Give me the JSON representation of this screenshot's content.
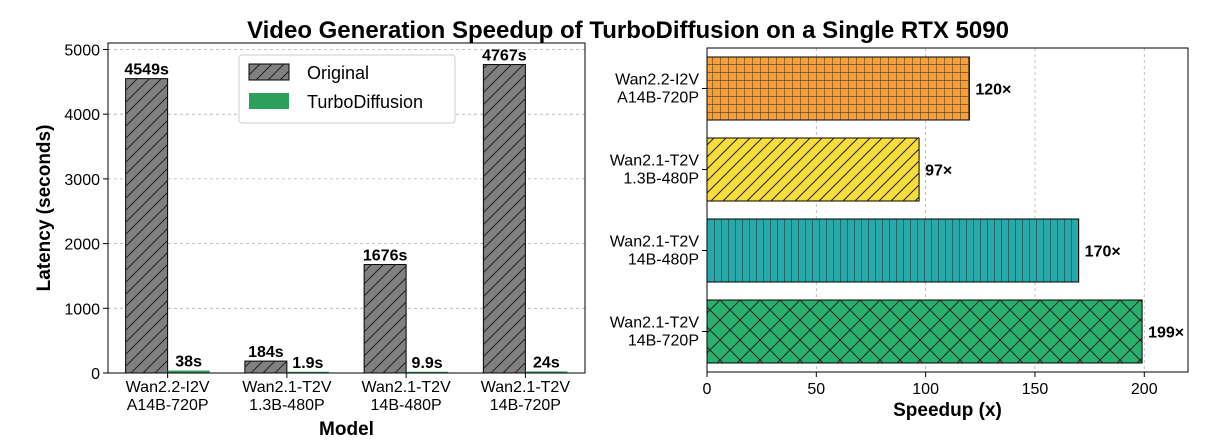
{
  "title": "Video Generation Speedup of TurboDiffusion on a Single RTX 5090",
  "chart_data": [
    {
      "type": "bar",
      "xlabel": "Model",
      "ylabel": "Latency (seconds)",
      "ylim": [
        0,
        5100
      ],
      "yticks": [
        0,
        1000,
        2000,
        3000,
        4000,
        5000
      ],
      "grid": true,
      "legend_position": "top-center",
      "categories": [
        [
          "Wan2.2-I2V",
          "A14B-720P"
        ],
        [
          "Wan2.1-T2V",
          "1.3B-480P"
        ],
        [
          "Wan2.1-T2V",
          "14B-480P"
        ],
        [
          "Wan2.1-T2V",
          "14B-720P"
        ]
      ],
      "series": [
        {
          "name": "Original",
          "color": "#808080",
          "hatch": "diagonal",
          "values": [
            4549,
            184,
            1676,
            4767
          ],
          "labels": [
            "4549s",
            "184s",
            "1676s",
            "4767s"
          ]
        },
        {
          "name": "TurboDiffusion",
          "color": "#2ca05a",
          "hatch": "none",
          "values": [
            38,
            1.9,
            9.9,
            24
          ],
          "labels": [
            "38s",
            "1.9s",
            "9.9s",
            "24s"
          ]
        }
      ]
    },
    {
      "type": "bar",
      "orientation": "horizontal",
      "xlabel": "Speedup (x)",
      "ylabel": "",
      "xlim": [
        0,
        220
      ],
      "xticks": [
        0,
        50,
        100,
        150,
        200
      ],
      "grid": true,
      "categories": [
        [
          "Wan2.2-I2V",
          "A14B-720P"
        ],
        [
          "Wan2.1-T2V",
          "1.3B-480P"
        ],
        [
          "Wan2.1-T2V",
          "14B-480P"
        ],
        [
          "Wan2.1-T2V",
          "14B-720P"
        ]
      ],
      "values": [
        120,
        97,
        170,
        199
      ],
      "labels": [
        "120×",
        "97×",
        "170×",
        "199×"
      ],
      "colors": [
        "#f7a03a",
        "#f8dc3a",
        "#26a9a9",
        "#2ab06d"
      ],
      "hatches": [
        "grid",
        "diagonal",
        "vertical",
        "crosshatch"
      ]
    }
  ]
}
